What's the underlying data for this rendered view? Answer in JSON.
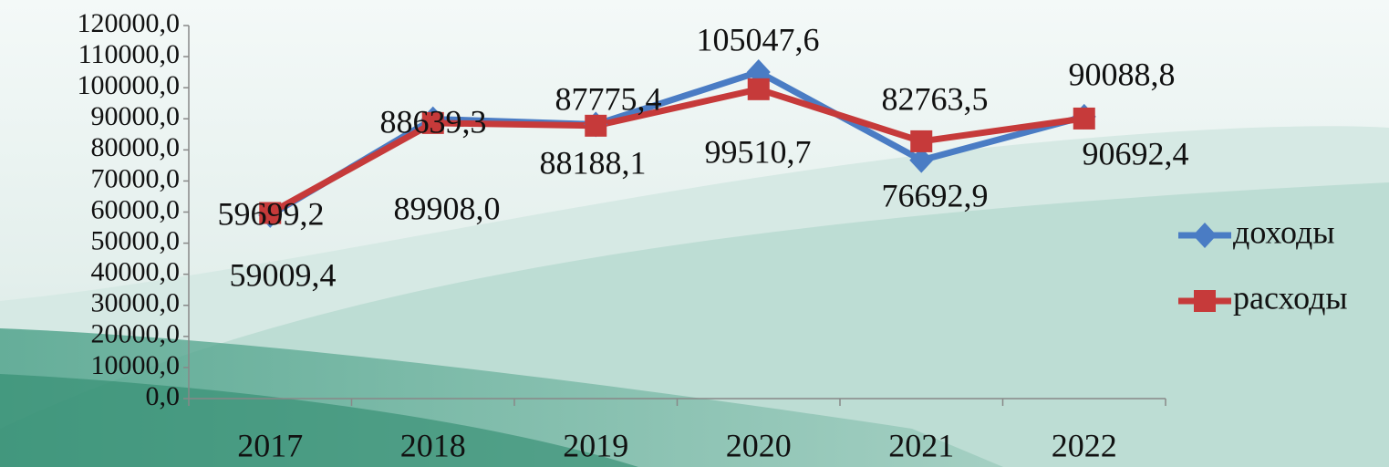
{
  "chart_data": {
    "type": "line",
    "categories": [
      "2017",
      "2018",
      "2019",
      "2020",
      "2021",
      "2022"
    ],
    "series": [
      {
        "name": "доходы",
        "color": "#4a7cc4",
        "values": [
          59009.4,
          89908.0,
          88188.1,
          105047.6,
          76692.9,
          90692.4
        ],
        "value_labels": [
          "59009,4",
          "89908,0",
          "88188,1",
          "105047,6",
          "76692,9",
          "90692,4"
        ]
      },
      {
        "name": "расходы",
        "color": "#c63a3a",
        "values": [
          59699.2,
          88639.3,
          87775.4,
          99510.7,
          82763.5,
          90088.8
        ],
        "value_labels": [
          "59699,2",
          "88639,3",
          "87775,4",
          "99510,7",
          "82763,5",
          "90088,8"
        ]
      }
    ],
    "ylim": [
      0,
      120000
    ],
    "yticks": [
      {
        "value": 0,
        "label": "0,0"
      },
      {
        "value": 10000,
        "label": "10000,0"
      },
      {
        "value": 20000,
        "label": "20000,0"
      },
      {
        "value": 30000,
        "label": "30000,0"
      },
      {
        "value": 40000,
        "label": "40000,0"
      },
      {
        "value": 50000,
        "label": "50000,0"
      },
      {
        "value": 60000,
        "label": "60000,0"
      },
      {
        "value": 70000,
        "label": "70000,0"
      },
      {
        "value": 80000,
        "label": "80000,0"
      },
      {
        "value": 90000,
        "label": "90000,0"
      },
      {
        "value": 100000,
        "label": "100000,0"
      },
      {
        "value": 110000,
        "label": "110000,0"
      },
      {
        "value": 120000,
        "label": "120000,0"
      }
    ],
    "legend": "right"
  }
}
